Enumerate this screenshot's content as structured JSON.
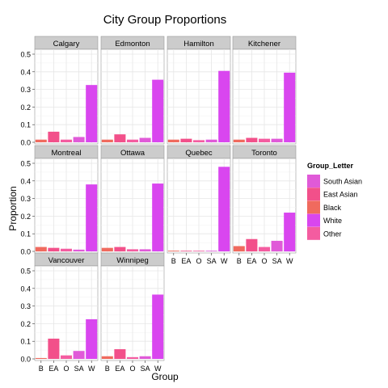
{
  "chart_data": {
    "type": "bar",
    "title": "City Group Proportions",
    "xlabel": "Group",
    "ylabel": "Proportion",
    "categories": [
      "B",
      "EA",
      "O",
      "SA",
      "W"
    ],
    "ylim": [
      0,
      0.5
    ],
    "yticks": [
      "0.0",
      "0.1",
      "0.2",
      "0.3",
      "0.4",
      "0.5"
    ],
    "grid": true,
    "legend": {
      "title": "Group_Letter",
      "placement": "right",
      "entries": [
        {
          "label": "South Asian",
          "color": "#e05ad8"
        },
        {
          "label": "East Asian",
          "color": "#f2508a"
        },
        {
          "label": "Black",
          "color": "#f06a5e"
        },
        {
          "label": "White",
          "color": "#d946ef"
        },
        {
          "label": "Other",
          "color": "#f45ca0"
        }
      ]
    },
    "bar_colors": [
      "#f06a5e",
      "#f2508a",
      "#f45ca0",
      "#e05ad8",
      "#d946ef"
    ],
    "panels": [
      {
        "name": "Calgary",
        "values": [
          0.015,
          0.06,
          0.015,
          0.03,
          0.325
        ]
      },
      {
        "name": "Edmonton",
        "values": [
          0.015,
          0.045,
          0.015,
          0.025,
          0.355
        ]
      },
      {
        "name": "Hamilton",
        "values": [
          0.015,
          0.02,
          0.012,
          0.015,
          0.405
        ]
      },
      {
        "name": "Kitchener",
        "values": [
          0.015,
          0.025,
          0.02,
          0.02,
          0.395
        ]
      },
      {
        "name": "Montreal",
        "values": [
          0.025,
          0.02,
          0.015,
          0.01,
          0.38
        ]
      },
      {
        "name": "Ottawa",
        "values": [
          0.02,
          0.025,
          0.012,
          0.012,
          0.385
        ]
      },
      {
        "name": "Quebec",
        "values": [
          0.004,
          0.003,
          0.003,
          0.002,
          0.48
        ]
      },
      {
        "name": "Toronto",
        "values": [
          0.03,
          0.07,
          0.025,
          0.06,
          0.22
        ]
      },
      {
        "name": "Vancouver",
        "values": [
          0.005,
          0.115,
          0.02,
          0.045,
          0.225
        ]
      },
      {
        "name": "Winnipeg",
        "values": [
          0.015,
          0.055,
          0.01,
          0.015,
          0.365
        ]
      }
    ]
  }
}
